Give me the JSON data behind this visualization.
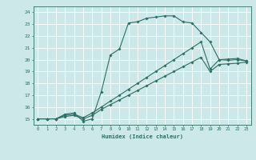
{
  "xlabel": "Humidex (Indice chaleur)",
  "bg_color": "#cce8e8",
  "grid_color": "#ffffff",
  "line_color": "#2e6e64",
  "xlim": [
    -0.5,
    23.5
  ],
  "ylim": [
    14.5,
    24.5
  ],
  "xticks": [
    0,
    1,
    2,
    3,
    4,
    5,
    6,
    7,
    8,
    9,
    10,
    11,
    12,
    13,
    14,
    15,
    16,
    17,
    18,
    19,
    20,
    21,
    22,
    23
  ],
  "yticks": [
    15,
    16,
    17,
    18,
    19,
    20,
    21,
    22,
    23,
    24
  ],
  "series": [
    {
      "x": [
        0,
        1,
        2,
        3,
        4,
        5,
        6,
        7,
        8,
        9,
        10,
        11,
        12,
        13,
        14,
        15,
        16,
        17,
        18,
        19,
        20,
        21,
        22,
        23
      ],
      "y": [
        15,
        15,
        15,
        15.4,
        15.5,
        14.8,
        15.0,
        17.3,
        20.4,
        20.9,
        23.1,
        23.2,
        23.5,
        23.6,
        23.7,
        23.7,
        23.2,
        23.1,
        22.3,
        21.5,
        20.0,
        19.95,
        20.0,
        19.9
      ]
    },
    {
      "x": [
        0,
        1,
        2,
        3,
        4,
        5,
        6,
        7,
        8,
        9,
        10,
        11,
        12,
        13,
        14,
        15,
        16,
        17,
        18,
        19,
        20,
        21,
        22,
        23
      ],
      "y": [
        15,
        15,
        15,
        15.3,
        15.4,
        15.1,
        15.5,
        16.0,
        16.5,
        17.0,
        17.5,
        18.0,
        18.5,
        19.0,
        19.5,
        20.0,
        20.5,
        21.0,
        21.5,
        19.2,
        20.0,
        20.05,
        20.1,
        19.9
      ]
    },
    {
      "x": [
        0,
        1,
        2,
        3,
        4,
        5,
        6,
        7,
        8,
        9,
        10,
        11,
        12,
        13,
        14,
        15,
        16,
        17,
        18,
        19,
        20,
        21,
        22,
        23
      ],
      "y": [
        15,
        15,
        15,
        15.2,
        15.3,
        15.0,
        15.3,
        15.8,
        16.2,
        16.6,
        17.0,
        17.4,
        17.8,
        18.2,
        18.6,
        19.0,
        19.4,
        19.8,
        20.2,
        19.0,
        19.6,
        19.65,
        19.7,
        19.8
      ]
    }
  ]
}
